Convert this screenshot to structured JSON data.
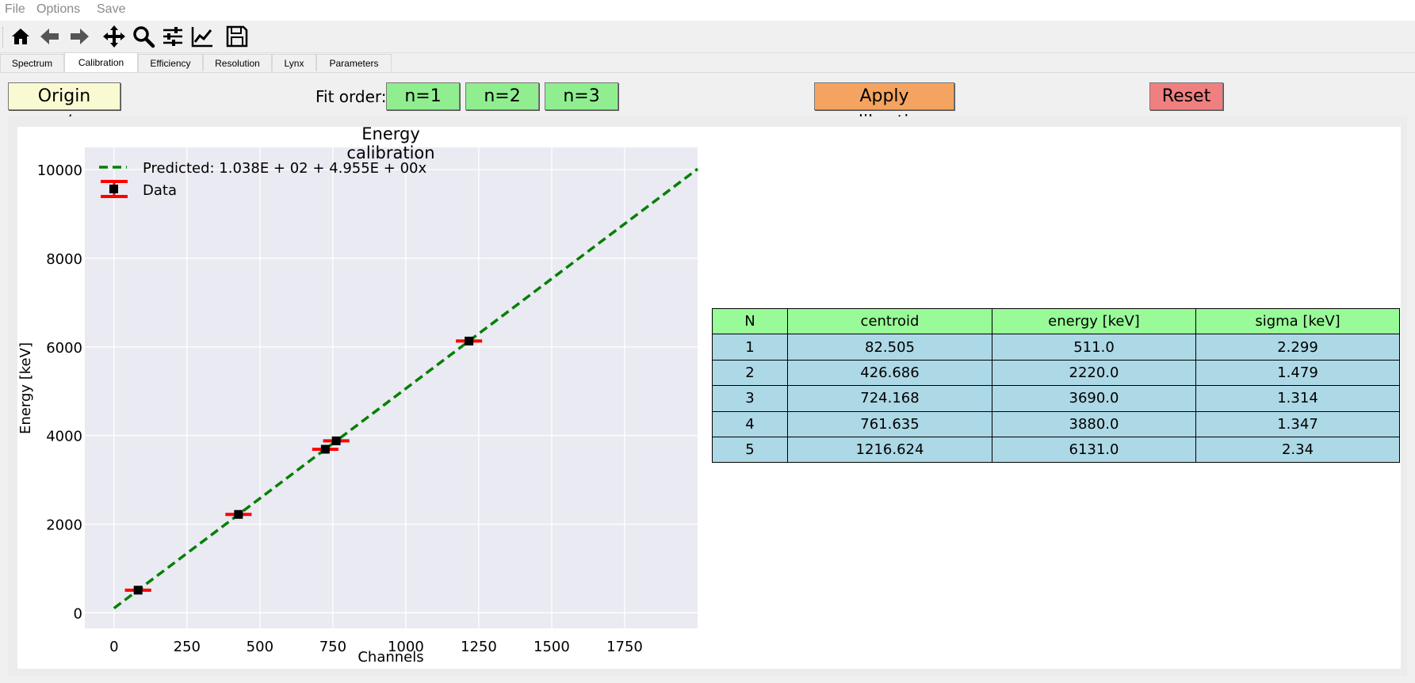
{
  "menu": {
    "file": "File",
    "options": "Options",
    "save": "Save"
  },
  "toolbar": {
    "icons": [
      "home-icon",
      "back-arrow-icon",
      "forward-arrow-icon",
      "pan-move-icon",
      "zoom-icon",
      "configure-subplots-icon",
      "edit-axis-icon",
      "save-figure-icon"
    ]
  },
  "tabs": [
    "Spectrum",
    "Calibration",
    "Efficiency",
    "Resolution",
    "Lynx",
    "Parameters"
  ],
  "active_tab": "Calibration",
  "controls": {
    "origin_label": "Origin yes/no",
    "fit_order_label": "Fit order:",
    "n1": "n=1",
    "n2": "n=2",
    "n3": "n=3",
    "apply_label": "Apply calibration",
    "reset_label": "Reset"
  },
  "colors": {
    "origin": "#fafad2",
    "fit": "#90ee90",
    "apply": "#f4a460",
    "reset": "#f08080",
    "fit_line": "#008000",
    "errorbar": "#ff0000",
    "plot_bg": "#eaeaf2"
  },
  "chart_data": {
    "type": "scatter",
    "title": "Energy calibration",
    "xlabel": "Channels",
    "ylabel": "Energy [keV]",
    "xlim": [
      -100,
      2000
    ],
    "ylim": [
      -350,
      10500
    ],
    "xticks": [
      0,
      250,
      500,
      750,
      1000,
      1250,
      1500,
      1750
    ],
    "yticks": [
      0,
      2000,
      4000,
      6000,
      8000,
      10000
    ],
    "grid": true,
    "legend_position": "top-left",
    "series": [
      {
        "name": "Predicted: 1.038E + 02 + 4.955E + 00x",
        "kind": "dashed-line",
        "intercept": 103.8,
        "slope": 4.955
      },
      {
        "name": "Data",
        "kind": "errorbar",
        "x": [
          82.505,
          426.686,
          724.168,
          761.635,
          1216.624
        ],
        "y": [
          511.0,
          2220.0,
          3690.0,
          3880.0,
          6131.0
        ],
        "xerr": [
          45,
          45,
          45,
          45,
          45
        ]
      }
    ]
  },
  "table": {
    "headers": [
      "N",
      "centroid",
      "energy [keV]",
      "sigma [keV]"
    ],
    "rows": [
      [
        "1",
        "82.505",
        "511.0",
        "2.299"
      ],
      [
        "2",
        "426.686",
        "2220.0",
        "1.479"
      ],
      [
        "3",
        "724.168",
        "3690.0",
        "1.314"
      ],
      [
        "4",
        "761.635",
        "3880.0",
        "1.347"
      ],
      [
        "5",
        "1216.624",
        "6131.0",
        "2.34"
      ]
    ]
  }
}
